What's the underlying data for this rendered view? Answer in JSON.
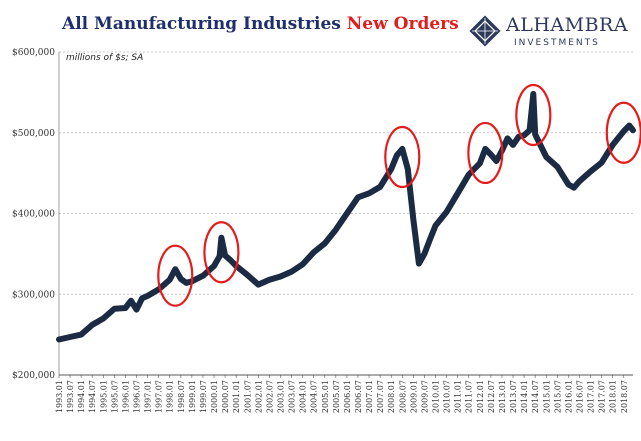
{
  "header": {
    "title_part1": "All Manufacturing Industries",
    "title_part2": "New Orders",
    "units_note": "millions of $s; SA"
  },
  "logo": {
    "name": "ALHAMBRA",
    "sub": "INVESTMENTS"
  },
  "colors": {
    "line": "#1c2b44",
    "highlight": "#e31c1c",
    "title_blue": "#1f2f6b",
    "title_red": "#e31c1c",
    "grid": "#c8c8c8"
  },
  "chart_data": {
    "type": "line",
    "ylim": [
      200000,
      600000
    ],
    "y_ticks": [
      {
        "value": 200000,
        "label": "$200,000"
      },
      {
        "value": 300000,
        "label": "$300,000"
      },
      {
        "value": 400000,
        "label": "$400,000"
      },
      {
        "value": 500000,
        "label": "$500,000"
      },
      {
        "value": 600000,
        "label": "$600,000"
      }
    ],
    "x_tick_labels": [
      "1993.01",
      "1993.07",
      "1994.01",
      "1994.07",
      "1995.01",
      "1995.07",
      "1996.01",
      "1996.07",
      "1997.01",
      "1997.07",
      "1998.01",
      "1998.07",
      "1999.01",
      "1999.07",
      "2000.01",
      "2000.07",
      "2001.01",
      "2001.07",
      "2002.01",
      "2002.07",
      "2003.01",
      "2003.07",
      "2004.01",
      "2004.07",
      "2005.01",
      "2005.07",
      "2006.01",
      "2006.07",
      "2007.01",
      "2007.07",
      "2008.01",
      "2008.07",
      "2009.01",
      "2009.07",
      "2010.01",
      "2010.07",
      "2011.01",
      "2011.07",
      "2012.01",
      "2012.07",
      "2013.01",
      "2013.07",
      "2014.01",
      "2014.07",
      "2015.01",
      "2015.07",
      "2016.01",
      "2016.07",
      "2017.01",
      "2017.07",
      "2018.01",
      "2018.07"
    ],
    "grid": "horizontal dotted",
    "series": [
      {
        "points": [
          [
            "1993.01",
            244000
          ],
          [
            "1993.07",
            247000
          ],
          [
            "1994.01",
            250000
          ],
          [
            "1994.07",
            262000
          ],
          [
            "1995.01",
            270000
          ],
          [
            "1995.07",
            282000
          ],
          [
            "1996.01",
            283000
          ],
          [
            "1996.04",
            292000
          ],
          [
            "1996.07",
            281000
          ],
          [
            "1996.10",
            295000
          ],
          [
            "1997.01",
            298000
          ],
          [
            "1997.07",
            306000
          ],
          [
            "1998.01",
            318000
          ],
          [
            "1998.04",
            331000
          ],
          [
            "1998.07",
            319000
          ],
          [
            "1998.10",
            314000
          ],
          [
            "1999.01",
            316000
          ],
          [
            "1999.07",
            323000
          ],
          [
            "2000.01",
            335000
          ],
          [
            "2000.04",
            347000
          ],
          [
            "2000.05",
            370000
          ],
          [
            "2000.07",
            348000
          ],
          [
            "2000.10",
            342000
          ],
          [
            "2001.01",
            335000
          ],
          [
            "2001.07",
            324000
          ],
          [
            "2002.01",
            312000
          ],
          [
            "2002.07",
            318000
          ],
          [
            "2003.01",
            322000
          ],
          [
            "2003.07",
            328000
          ],
          [
            "2004.01",
            337000
          ],
          [
            "2004.07",
            352000
          ],
          [
            "2005.01",
            363000
          ],
          [
            "2005.07",
            380000
          ],
          [
            "2006.01",
            400000
          ],
          [
            "2006.07",
            420000
          ],
          [
            "2007.01",
            425000
          ],
          [
            "2007.07",
            433000
          ],
          [
            "2008.01",
            455000
          ],
          [
            "2008.04",
            472000
          ],
          [
            "2008.07",
            480000
          ],
          [
            "2008.10",
            455000
          ],
          [
            "2009.01",
            392000
          ],
          [
            "2009.04",
            338000
          ],
          [
            "2009.07",
            350000
          ],
          [
            "2009.10",
            368000
          ],
          [
            "2010.01",
            385000
          ],
          [
            "2010.07",
            402000
          ],
          [
            "2011.01",
            425000
          ],
          [
            "2011.07",
            448000
          ],
          [
            "2012.01",
            462000
          ],
          [
            "2012.04",
            480000
          ],
          [
            "2012.07",
            473000
          ],
          [
            "2012.10",
            465000
          ],
          [
            "2013.01",
            478000
          ],
          [
            "2013.04",
            493000
          ],
          [
            "2013.07",
            485000
          ],
          [
            "2013.10",
            495000
          ],
          [
            "2014.01",
            497000
          ],
          [
            "2014.04",
            503000
          ],
          [
            "2014.06",
            548000
          ],
          [
            "2014.07",
            498000
          ],
          [
            "2015.01",
            470000
          ],
          [
            "2015.07",
            458000
          ],
          [
            "2016.01",
            436000
          ],
          [
            "2016.04",
            432000
          ],
          [
            "2016.07",
            440000
          ],
          [
            "2017.01",
            452000
          ],
          [
            "2017.07",
            463000
          ],
          [
            "2018.01",
            485000
          ],
          [
            "2018.07",
            502000
          ],
          [
            "2018.10",
            509000
          ],
          [
            "2018.12",
            503000
          ]
        ]
      }
    ],
    "highlight_circles": [
      {
        "center_x": "1998.04",
        "center_y": 323000,
        "note": "1998 peak"
      },
      {
        "center_x": "2000.05",
        "center_y": 352000,
        "note": "2000 peak"
      },
      {
        "center_x": "2008.07",
        "center_y": 470000,
        "note": "2008 peak"
      },
      {
        "center_x": "2012.04",
        "center_y": 475000,
        "note": "2012 peak"
      },
      {
        "center_x": "2014.06",
        "center_y": 522000,
        "note": "2014 peak"
      },
      {
        "center_x": "2018.07",
        "center_y": 500000,
        "note": "2018 peak"
      }
    ]
  }
}
